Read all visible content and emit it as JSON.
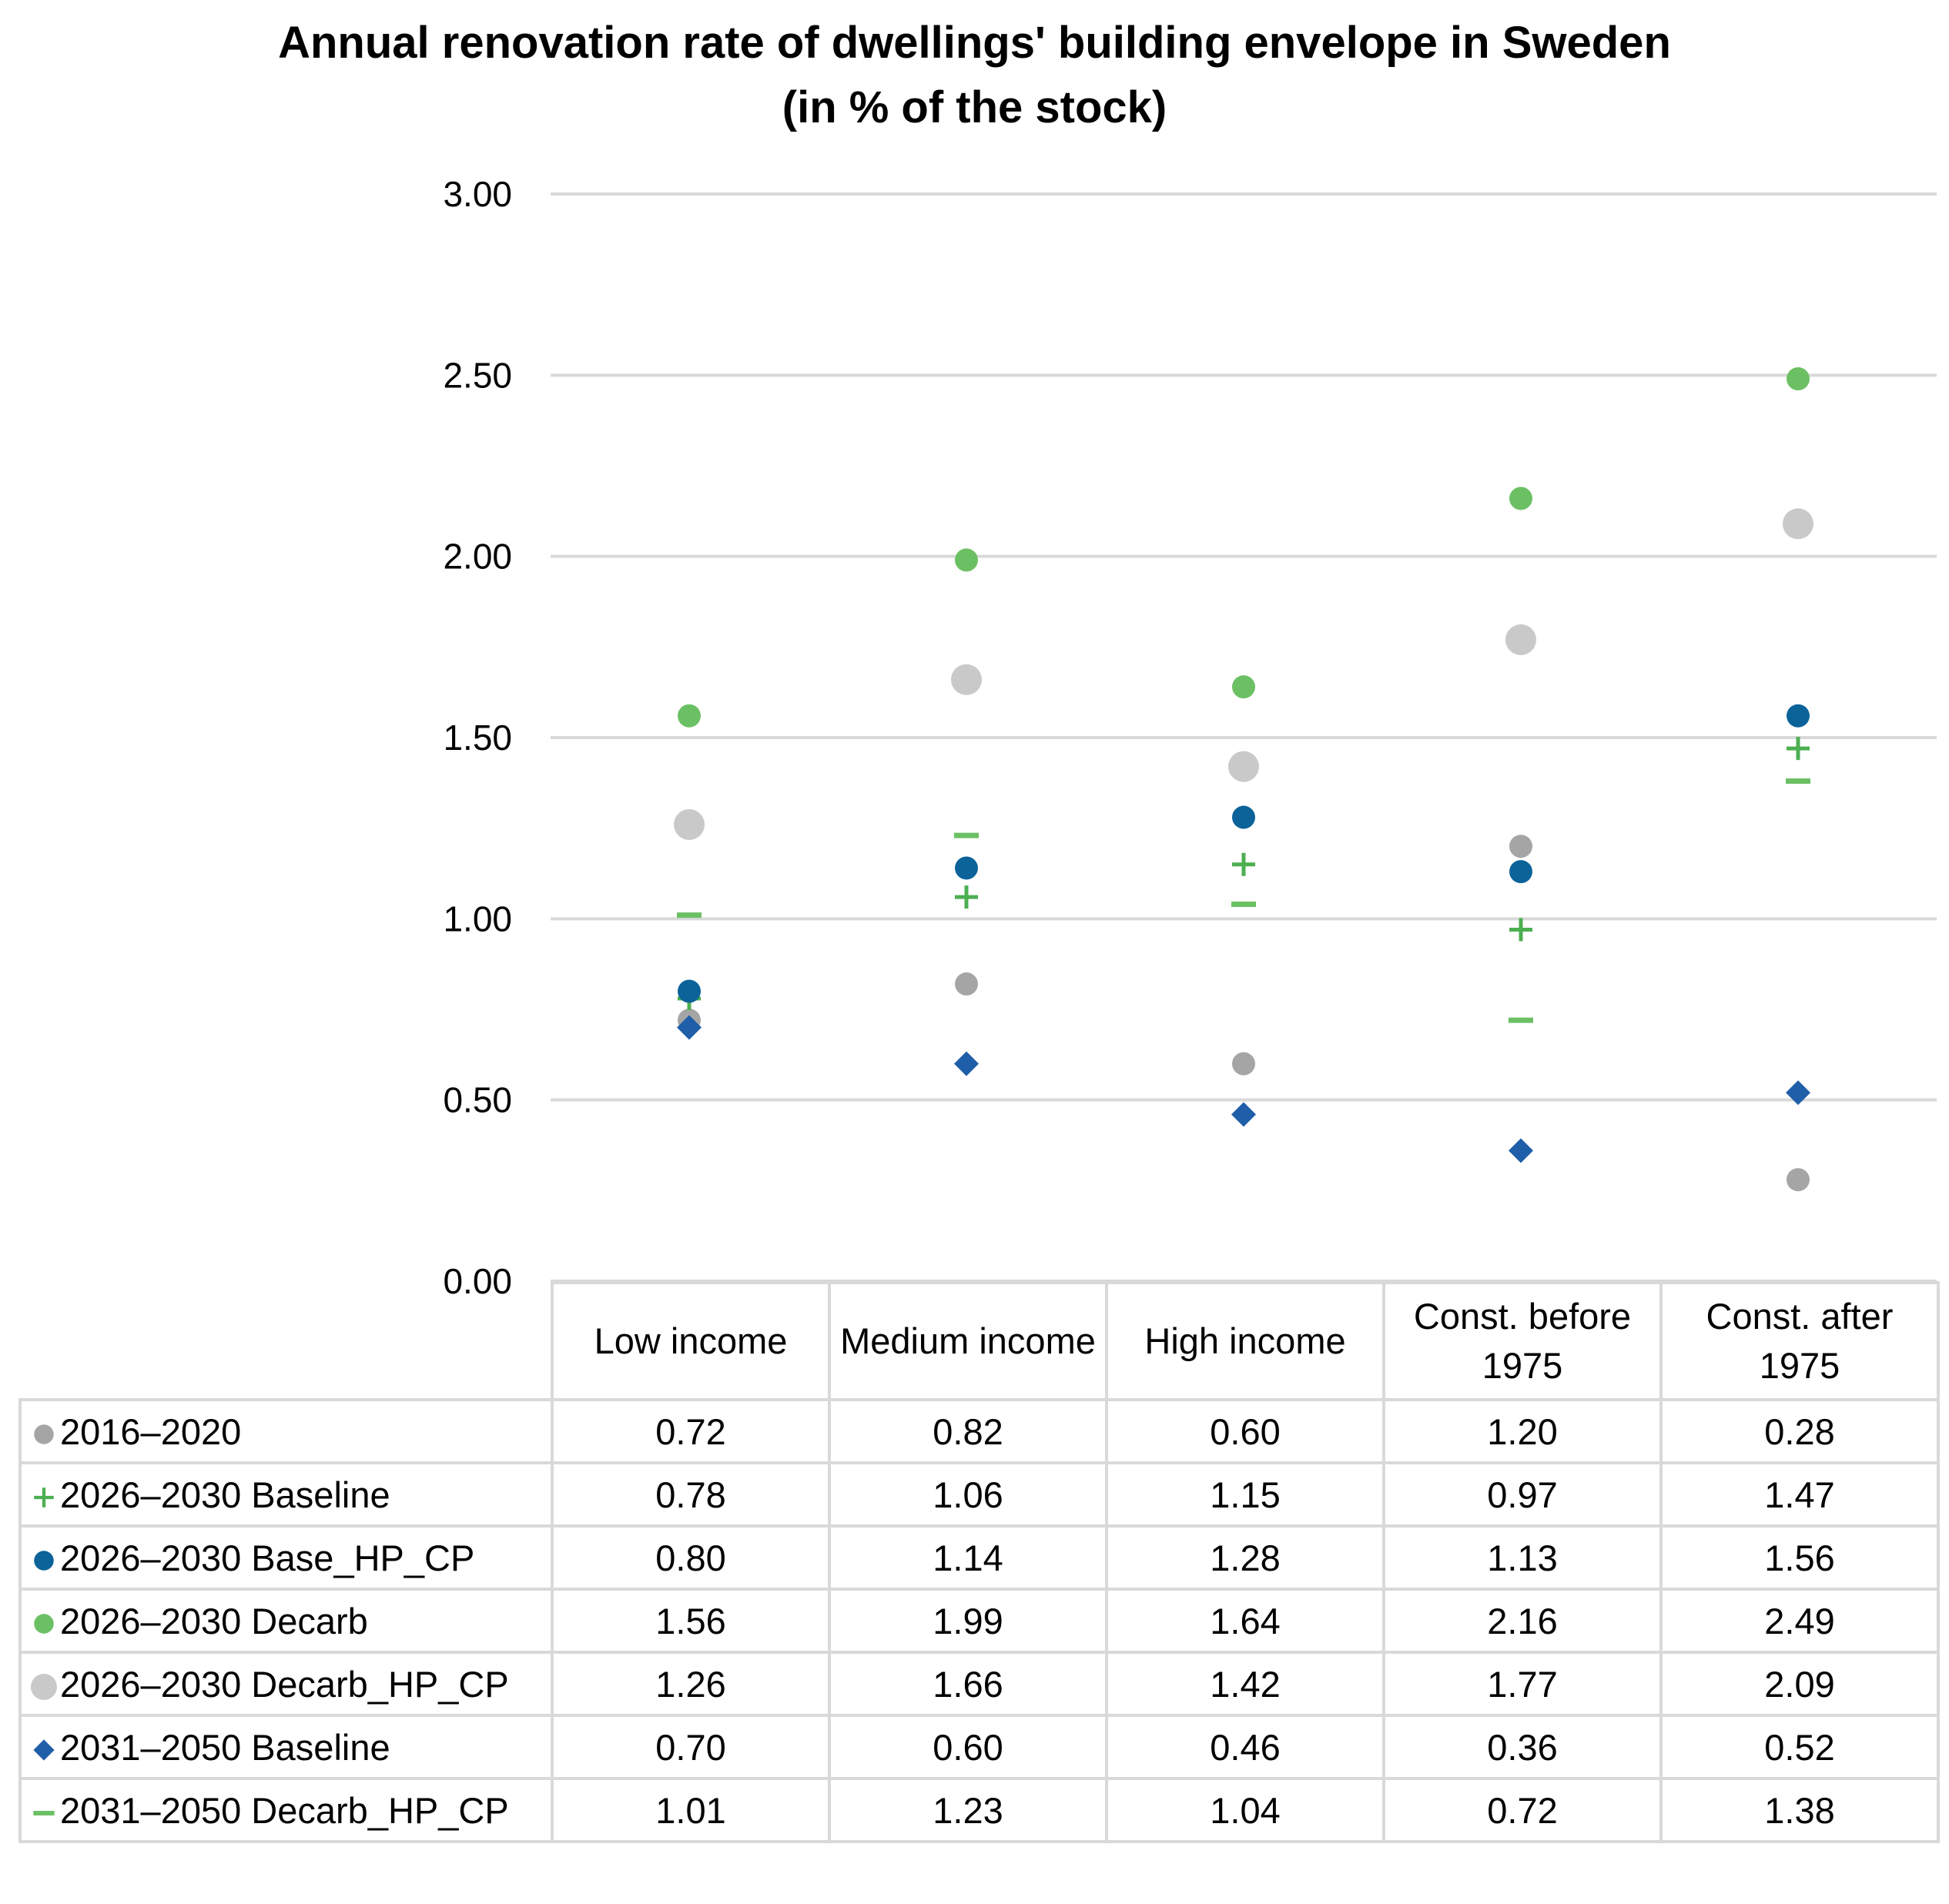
{
  "chart_data": {
    "type": "dot",
    "title": "Annual renovation rate of dwellings' building envelope in Sweden",
    "subtitle": "(in % of the stock)",
    "categories": [
      "Low income",
      "Medium income",
      "High income",
      "Const. before 1975",
      "Const. after 1975"
    ],
    "ylim": [
      0,
      3
    ],
    "yticks": [
      {
        "value": 0,
        "label": "0.00"
      },
      {
        "value": 0.5,
        "label": "0.50"
      },
      {
        "value": 1,
        "label": "1.00"
      },
      {
        "value": 1.5,
        "label": "1.50"
      },
      {
        "value": 2,
        "label": "2.00"
      },
      {
        "value": 2.5,
        "label": "2.50"
      },
      {
        "value": 3,
        "label": "3.00"
      }
    ],
    "grid": true,
    "series": [
      {
        "name": "2016–2020",
        "color": "#a5a5a5",
        "marker": "circle",
        "values": [
          0.72,
          0.82,
          0.6,
          1.2,
          0.28
        ],
        "value_labels": [
          "0.72",
          "0.82",
          "0.60",
          "1.20",
          "0.28"
        ]
      },
      {
        "name": "2026–2030 Baseline",
        "color": "#4caf50",
        "marker": "plus",
        "values": [
          0.78,
          1.06,
          1.15,
          0.97,
          1.47
        ],
        "value_labels": [
          "0.78",
          "1.06",
          "1.15",
          "0.97",
          "1.47"
        ]
      },
      {
        "name": "2026–2030 Base_HP_CP",
        "color": "#0b6399",
        "marker": "circle",
        "values": [
          0.8,
          1.14,
          1.28,
          1.13,
          1.56
        ],
        "value_labels": [
          "0.80",
          "1.14",
          "1.28",
          "1.13",
          "1.56"
        ]
      },
      {
        "name": "2026–2030 Decarb",
        "color": "#6cc064",
        "marker": "circle",
        "values": [
          1.56,
          1.99,
          1.64,
          2.16,
          2.49
        ],
        "value_labels": [
          "1.56",
          "1.99",
          "1.64",
          "2.16",
          "2.49"
        ]
      },
      {
        "name": "2026–2030 Decarb_HP_CP",
        "color": "#c9c9c9",
        "marker": "bigcircle",
        "values": [
          1.26,
          1.66,
          1.42,
          1.77,
          2.09
        ],
        "value_labels": [
          "1.26",
          "1.66",
          "1.42",
          "1.77",
          "2.09"
        ]
      },
      {
        "name": "2031–2050 Baseline",
        "color": "#1f5ea8",
        "marker": "diamond",
        "values": [
          0.7,
          0.6,
          0.46,
          0.36,
          0.52
        ],
        "value_labels": [
          "0.70",
          "0.60",
          "0.46",
          "0.36",
          "0.52"
        ]
      },
      {
        "name": "2031–2050 Decarb_HP_CP",
        "color": "#6cc064",
        "marker": "dash",
        "values": [
          1.01,
          1.23,
          1.04,
          0.72,
          1.38
        ],
        "value_labels": [
          "1.01",
          "1.23",
          "1.04",
          "0.72",
          "1.38"
        ]
      }
    ]
  }
}
